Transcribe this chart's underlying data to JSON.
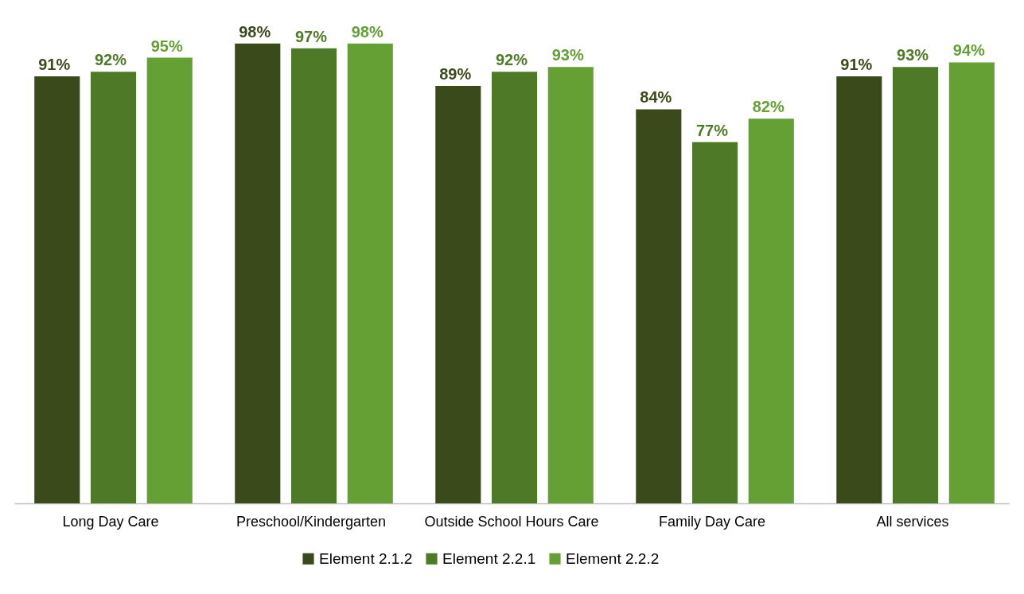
{
  "chart_data": {
    "type": "bar",
    "categories": [
      "Long Day Care",
      "Preschool/Kindergarten",
      "Outside School Hours Care",
      "Family Day Care",
      "All services"
    ],
    "series": [
      {
        "name": "Element 2.1.2",
        "color": "#3b4a1b",
        "values": [
          91,
          98,
          89,
          84,
          91
        ],
        "value_labels": [
          "91%",
          "98%",
          "89%",
          "84%",
          "91%"
        ]
      },
      {
        "name": "Element 2.2.1",
        "color": "#4e7a27",
        "values": [
          92,
          97,
          92,
          77,
          93
        ],
        "value_labels": [
          "92%",
          "97%",
          "92%",
          "77%",
          "93%"
        ]
      },
      {
        "name": "Element 2.2.2",
        "color": "#65a035",
        "values": [
          95,
          98,
          93,
          82,
          94
        ],
        "value_labels": [
          "95%",
          "98%",
          "93%",
          "82%",
          "94%"
        ]
      }
    ],
    "legend": "bottom"
  }
}
